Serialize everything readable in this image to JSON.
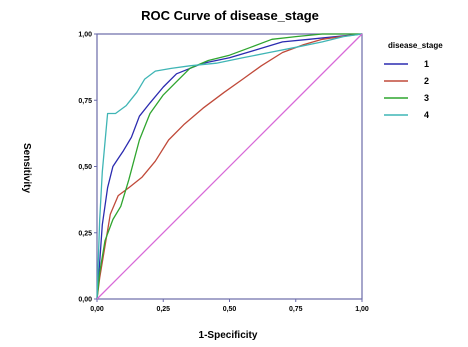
{
  "chart_data": {
    "type": "line",
    "title": "ROC Curve of disease_stage",
    "xlabel": "1-Specificity",
    "ylabel": "Sensitivity",
    "xlim": [
      0,
      1
    ],
    "ylim": [
      0,
      1
    ],
    "xticks": [
      "0,00",
      "0,25",
      "0,50",
      "0,75",
      "1,00"
    ],
    "yticks": [
      "0,00",
      "0,25",
      "0,50",
      "0,75",
      "1,00"
    ],
    "legend": {
      "title": "disease_stage",
      "placement": "right"
    },
    "grid": false,
    "series": [
      {
        "name": "1",
        "color": "#2b2bb0",
        "x": [
          0,
          0.01,
          0.02,
          0.04,
          0.06,
          0.08,
          0.1,
          0.13,
          0.16,
          0.2,
          0.25,
          0.3,
          0.4,
          0.5,
          0.6,
          0.7,
          0.8,
          0.9,
          1.0
        ],
        "y": [
          0,
          0.14,
          0.28,
          0.42,
          0.5,
          0.53,
          0.56,
          0.61,
          0.69,
          0.74,
          0.8,
          0.85,
          0.89,
          0.91,
          0.94,
          0.97,
          0.98,
          0.99,
          1.0
        ]
      },
      {
        "name": "2",
        "color": "#c04a3a",
        "x": [
          0,
          0.01,
          0.03,
          0.05,
          0.08,
          0.12,
          0.17,
          0.22,
          0.27,
          0.33,
          0.4,
          0.48,
          0.55,
          0.62,
          0.7,
          0.78,
          0.85,
          0.92,
          1.0
        ],
        "y": [
          0,
          0.08,
          0.2,
          0.32,
          0.39,
          0.42,
          0.46,
          0.52,
          0.6,
          0.66,
          0.72,
          0.78,
          0.83,
          0.88,
          0.93,
          0.96,
          0.98,
          0.99,
          1.0
        ]
      },
      {
        "name": "3",
        "color": "#2fa52f",
        "x": [
          0,
          0.01,
          0.03,
          0.06,
          0.09,
          0.12,
          0.16,
          0.2,
          0.25,
          0.3,
          0.35,
          0.42,
          0.5,
          0.58,
          0.66,
          0.75,
          0.85,
          0.93,
          1.0
        ],
        "y": [
          0,
          0.1,
          0.22,
          0.3,
          0.35,
          0.45,
          0.6,
          0.7,
          0.77,
          0.82,
          0.87,
          0.9,
          0.92,
          0.95,
          0.98,
          0.99,
          1.0,
          1.0,
          1.0
        ]
      },
      {
        "name": "4",
        "color": "#3fb5b5",
        "x": [
          0,
          0.01,
          0.02,
          0.04,
          0.07,
          0.11,
          0.15,
          0.18,
          0.22,
          0.28,
          0.35,
          0.45,
          0.55,
          0.65,
          0.75,
          0.85,
          0.93,
          1.0
        ],
        "y": [
          0,
          0.3,
          0.48,
          0.7,
          0.7,
          0.73,
          0.78,
          0.83,
          0.86,
          0.87,
          0.88,
          0.89,
          0.91,
          0.93,
          0.95,
          0.97,
          0.99,
          1.0
        ]
      },
      {
        "name": "",
        "color": "#d86ad8",
        "x": [
          0,
          1
        ],
        "y": [
          0,
          1
        ]
      }
    ]
  }
}
